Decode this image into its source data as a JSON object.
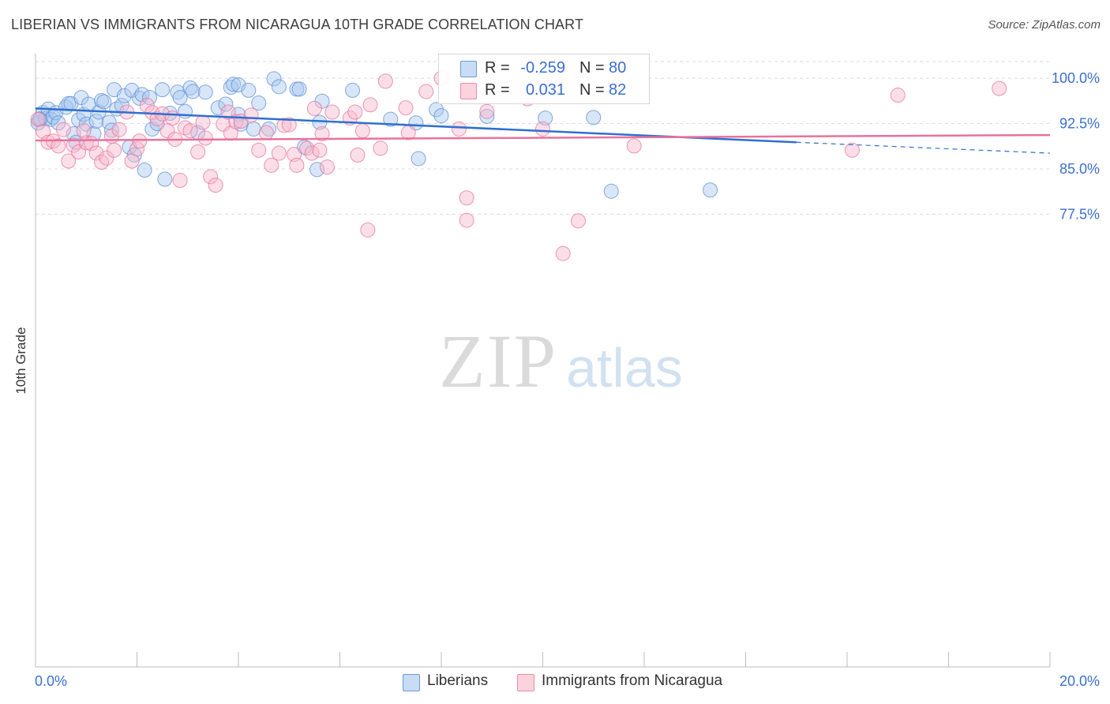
{
  "title": "LIBERIAN VS IMMIGRANTS FROM NICARAGUA 10TH GRADE CORRELATION CHART",
  "source": "Source: ZipAtlas.com",
  "watermark": {
    "zip": "ZIP",
    "atlas": "atlas"
  },
  "legend_top": {
    "rows": [
      {
        "r_label": "R =",
        "r_value": "-0.259",
        "n_label": "N =",
        "n_value": "80",
        "color": "#a9c8f0"
      },
      {
        "r_label": "R =",
        "r_value": "0.031",
        "n_label": "N =",
        "n_value": "82",
        "color": "#f7b8cc"
      }
    ]
  },
  "legend_bottom": {
    "items": [
      {
        "label": "Liberians",
        "color": "#a9c8f0"
      },
      {
        "label": "Immigrants from Nicaragua",
        "color": "#f7b8cc"
      }
    ]
  },
  "chart_data": {
    "type": "scatter",
    "title": "LIBERIAN VS IMMIGRANTS FROM NICARAGUA 10TH GRADE CORRELATION CHART",
    "xlabel": "",
    "ylabel": "10th Grade",
    "xlim": [
      0,
      20
    ],
    "ylim": [
      69.5,
      100.8
    ],
    "x_tick_labels": {
      "left": "0.0%",
      "right": "20.0%"
    },
    "y_ticks": [
      {
        "value": 100.0,
        "label": "100.0%"
      },
      {
        "value": 92.5,
        "label": "92.5%"
      },
      {
        "value": 85.0,
        "label": "85.0%"
      },
      {
        "value": 77.5,
        "label": "77.5%"
      }
    ],
    "grid": true,
    "legend": "top-center",
    "series": [
      {
        "name": "Liberians",
        "color": "#5b8fd6",
        "fill": "#a9c8f0",
        "trend": {
          "x_start": 0.0,
          "y_start": 95.0,
          "x_solid_end": 15.0,
          "y_solid_end": 89.4,
          "x_dash_end": 20.0,
          "y_dash_end": 87.6
        },
        "points": [
          [
            0.05,
            92.6
          ],
          [
            0.1,
            93.3
          ],
          [
            0.15,
            94.3
          ],
          [
            0.2,
            93.3
          ],
          [
            0.25,
            94.9
          ],
          [
            0.3,
            93.2
          ],
          [
            0.35,
            93.6
          ],
          [
            0.4,
            94.3
          ],
          [
            0.45,
            92.6
          ],
          [
            0.6,
            95.2
          ],
          [
            0.65,
            95.8
          ],
          [
            0.7,
            95.8
          ],
          [
            0.75,
            90.8
          ],
          [
            0.8,
            89.4
          ],
          [
            0.85,
            93.1
          ],
          [
            0.9,
            96.8
          ],
          [
            0.95,
            94.0
          ],
          [
            1.0,
            92.4
          ],
          [
            1.05,
            95.7
          ],
          [
            1.15,
            90.8
          ],
          [
            1.2,
            92.9
          ],
          [
            1.25,
            94.4
          ],
          [
            1.3,
            96.3
          ],
          [
            1.35,
            96.1
          ],
          [
            1.45,
            92.7
          ],
          [
            1.5,
            91.4
          ],
          [
            1.55,
            98.1
          ],
          [
            1.6,
            94.9
          ],
          [
            1.7,
            95.5
          ],
          [
            1.75,
            97.1
          ],
          [
            1.85,
            88.6
          ],
          [
            1.9,
            98.0
          ],
          [
            1.95,
            87.3
          ],
          [
            2.05,
            96.7
          ],
          [
            2.1,
            97.3
          ],
          [
            2.15,
            84.8
          ],
          [
            2.25,
            96.8
          ],
          [
            2.3,
            91.6
          ],
          [
            2.4,
            92.5
          ],
          [
            2.5,
            98.1
          ],
          [
            2.55,
            83.3
          ],
          [
            2.65,
            94.2
          ],
          [
            2.8,
            97.7
          ],
          [
            2.85,
            96.8
          ],
          [
            2.95,
            94.5
          ],
          [
            3.05,
            98.4
          ],
          [
            3.1,
            97.8
          ],
          [
            3.2,
            91.0
          ],
          [
            3.35,
            97.7
          ],
          [
            3.6,
            95.1
          ],
          [
            3.75,
            95.7
          ],
          [
            3.85,
            98.5
          ],
          [
            3.9,
            99.0
          ],
          [
            4.0,
            98.9
          ],
          [
            4.0,
            94.0
          ],
          [
            4.05,
            92.4
          ],
          [
            4.2,
            98.0
          ],
          [
            4.3,
            91.6
          ],
          [
            4.4,
            95.9
          ],
          [
            4.6,
            91.6
          ],
          [
            4.7,
            99.9
          ],
          [
            4.8,
            98.6
          ],
          [
            5.15,
            98.2
          ],
          [
            5.2,
            98.2
          ],
          [
            5.3,
            88.6
          ],
          [
            5.55,
            84.9
          ],
          [
            5.6,
            92.7
          ],
          [
            5.65,
            96.2
          ],
          [
            6.25,
            98.0
          ],
          [
            7.0,
            93.2
          ],
          [
            7.5,
            92.6
          ],
          [
            7.55,
            86.7
          ],
          [
            7.9,
            94.8
          ],
          [
            8.0,
            93.8
          ],
          [
            8.9,
            93.7
          ],
          [
            10.05,
            93.4
          ],
          [
            11.0,
            93.5
          ],
          [
            11.35,
            81.3
          ],
          [
            13.3,
            81.5
          ],
          [
            0.08,
            93.2
          ]
        ]
      },
      {
        "name": "Immigrants from Nicaragua",
        "color": "#e8729b",
        "fill": "#f7b8cc",
        "trend": {
          "x_start": 0.0,
          "y_start": 89.7,
          "x_solid_end": 20.0,
          "y_solid_end": 90.6
        },
        "points": [
          [
            0.05,
            93.2
          ],
          [
            0.15,
            91.2
          ],
          [
            0.25,
            89.4
          ],
          [
            0.35,
            89.6
          ],
          [
            0.45,
            88.8
          ],
          [
            0.55,
            91.5
          ],
          [
            0.65,
            86.3
          ],
          [
            0.75,
            88.9
          ],
          [
            0.85,
            87.8
          ],
          [
            0.95,
            91.3
          ],
          [
            1.0,
            89.3
          ],
          [
            1.1,
            89.2
          ],
          [
            1.2,
            87.6
          ],
          [
            1.3,
            86.1
          ],
          [
            1.4,
            86.8
          ],
          [
            1.5,
            90.4
          ],
          [
            1.55,
            88.1
          ],
          [
            1.65,
            91.5
          ],
          [
            1.8,
            94.4
          ],
          [
            1.9,
            86.3
          ],
          [
            2.0,
            88.3
          ],
          [
            2.05,
            89.6
          ],
          [
            2.2,
            95.5
          ],
          [
            2.3,
            94.3
          ],
          [
            2.4,
            93.3
          ],
          [
            2.5,
            94.1
          ],
          [
            2.6,
            91.3
          ],
          [
            2.7,
            93.4
          ],
          [
            2.75,
            89.9
          ],
          [
            2.85,
            83.1
          ],
          [
            2.95,
            91.8
          ],
          [
            3.05,
            91.3
          ],
          [
            3.2,
            87.8
          ],
          [
            3.3,
            92.7
          ],
          [
            3.35,
            90.1
          ],
          [
            3.45,
            83.7
          ],
          [
            3.55,
            82.3
          ],
          [
            3.7,
            92.4
          ],
          [
            3.8,
            94.4
          ],
          [
            3.85,
            90.9
          ],
          [
            3.95,
            92.8
          ],
          [
            4.05,
            92.9
          ],
          [
            4.25,
            93.9
          ],
          [
            4.4,
            88.1
          ],
          [
            4.55,
            91.0
          ],
          [
            4.65,
            85.6
          ],
          [
            4.8,
            87.6
          ],
          [
            4.9,
            92.2
          ],
          [
            5.0,
            92.3
          ],
          [
            5.1,
            87.4
          ],
          [
            5.15,
            85.6
          ],
          [
            5.35,
            88.4
          ],
          [
            5.45,
            87.6
          ],
          [
            5.5,
            95.0
          ],
          [
            5.6,
            88.1
          ],
          [
            5.65,
            90.8
          ],
          [
            5.75,
            85.3
          ],
          [
            5.85,
            94.4
          ],
          [
            6.2,
            93.4
          ],
          [
            6.3,
            94.4
          ],
          [
            6.35,
            87.3
          ],
          [
            6.45,
            91.3
          ],
          [
            6.55,
            74.9
          ],
          [
            6.6,
            95.6
          ],
          [
            6.8,
            88.4
          ],
          [
            6.9,
            99.5
          ],
          [
            7.3,
            95.1
          ],
          [
            7.35,
            91.0
          ],
          [
            7.7,
            97.8
          ],
          [
            8.0,
            100.0
          ],
          [
            8.35,
            91.6
          ],
          [
            8.5,
            80.2
          ],
          [
            8.5,
            76.5
          ],
          [
            8.9,
            94.5
          ],
          [
            9.7,
            96.6
          ],
          [
            10.0,
            91.6
          ],
          [
            10.4,
            71.0
          ],
          [
            10.7,
            76.4
          ],
          [
            11.8,
            88.8
          ],
          [
            16.1,
            88.1
          ],
          [
            17.0,
            97.2
          ],
          [
            19.0,
            98.3
          ]
        ]
      }
    ]
  }
}
